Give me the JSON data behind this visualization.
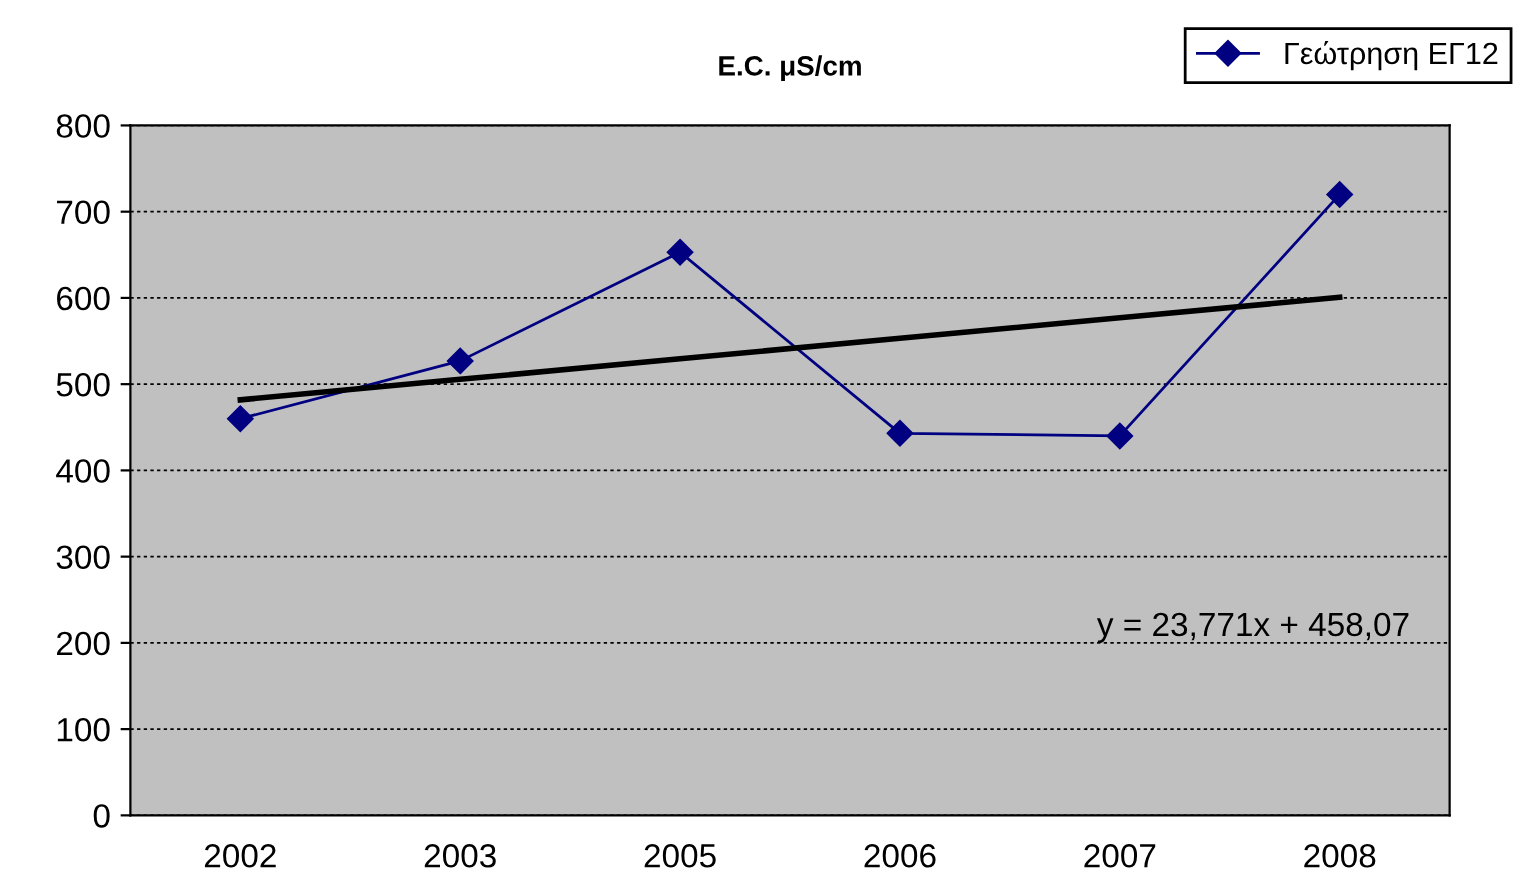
{
  "chart_data": {
    "type": "line",
    "title": "E.C. μS/cm",
    "categories": [
      "2002",
      "2003",
      "2005",
      "2006",
      "2007",
      "2008"
    ],
    "series": [
      {
        "name": "Γεώτρηση ΕΓ12",
        "color": "#000080",
        "marker": "diamond",
        "values": [
          460,
          527,
          653,
          443,
          440,
          720
        ]
      },
      {
        "color": "#000000",
        "marker": "none",
        "values": [
          481.8,
          505.6,
          529.4,
          553.2,
          576.9,
          600.7
        ]
      }
    ],
    "ylim": [
      0,
      800
    ],
    "yticks": [
      0,
      100,
      200,
      300,
      400,
      500,
      600,
      700,
      800
    ],
    "grid": "y",
    "legend": "top right",
    "annotations": [
      "y = 23,771x + 458,07"
    ]
  }
}
